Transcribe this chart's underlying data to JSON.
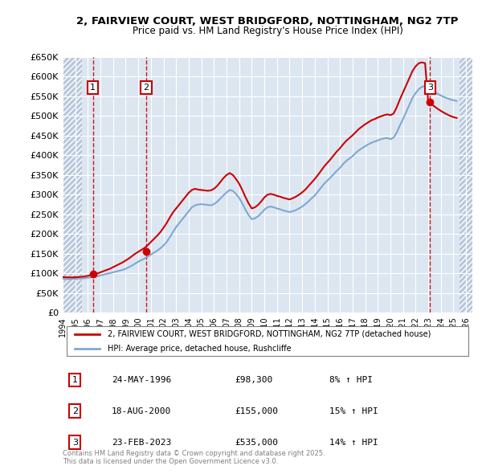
{
  "title": "2, FAIRVIEW COURT, WEST BRIDGFORD, NOTTINGHAM, NG2 7TP",
  "subtitle": "Price paid vs. HM Land Registry's House Price Index (HPI)",
  "legend_line1": "2, FAIRVIEW COURT, WEST BRIDGFORD, NOTTINGHAM, NG2 7TP (detached house)",
  "legend_line2": "HPI: Average price, detached house, Rushcliffe",
  "footer": "Contains HM Land Registry data © Crown copyright and database right 2025.\nThis data is licensed under the Open Government Licence v3.0.",
  "ylim": [
    0,
    650000
  ],
  "yticks": [
    0,
    50000,
    100000,
    150000,
    200000,
    250000,
    300000,
    350000,
    400000,
    450000,
    500000,
    550000,
    600000,
    650000
  ],
  "xlim_start": 1994.0,
  "xlim_end": 2026.5,
  "hatch_end_year": 1995.5,
  "hatch_start_year2": 2025.5,
  "background_color": "#ffffff",
  "plot_bg_color": "#dce6f1",
  "hatch_color": "#b8c8dc",
  "grid_color": "#ffffff",
  "red_line_color": "#cc0000",
  "blue_line_color": "#7fa8d0",
  "sale_marker_color": "#cc0000",
  "sale_vline_color": "#cc0000",
  "sales": [
    {
      "num": 1,
      "year": 1996.39,
      "price": 98300,
      "label": "24-MAY-1996",
      "amount": "£98,300",
      "pct": "8% ↑ HPI"
    },
    {
      "num": 2,
      "year": 2000.63,
      "price": 155000,
      "label": "18-AUG-2000",
      "amount": "£155,000",
      "pct": "15% ↑ HPI"
    },
    {
      "num": 3,
      "year": 2023.15,
      "price": 535000,
      "label": "23-FEB-2023",
      "amount": "£535,000",
      "pct": "14% ↑ HPI"
    }
  ],
  "hpi_data": {
    "years": [
      1994.0,
      1994.25,
      1994.5,
      1994.75,
      1995.0,
      1995.25,
      1995.5,
      1995.75,
      1996.0,
      1996.25,
      1996.5,
      1996.75,
      1997.0,
      1997.25,
      1997.5,
      1997.75,
      1998.0,
      1998.25,
      1998.5,
      1998.75,
      1999.0,
      1999.25,
      1999.5,
      1999.75,
      2000.0,
      2000.25,
      2000.5,
      2000.75,
      2001.0,
      2001.25,
      2001.5,
      2001.75,
      2002.0,
      2002.25,
      2002.5,
      2002.75,
      2003.0,
      2003.25,
      2003.5,
      2003.75,
      2004.0,
      2004.25,
      2004.5,
      2004.75,
      2005.0,
      2005.25,
      2005.5,
      2005.75,
      2006.0,
      2006.25,
      2006.5,
      2006.75,
      2007.0,
      2007.25,
      2007.5,
      2007.75,
      2008.0,
      2008.25,
      2008.5,
      2008.75,
      2009.0,
      2009.25,
      2009.5,
      2009.75,
      2010.0,
      2010.25,
      2010.5,
      2010.75,
      2011.0,
      2011.25,
      2011.5,
      2011.75,
      2012.0,
      2012.25,
      2012.5,
      2012.75,
      2013.0,
      2013.25,
      2013.5,
      2013.75,
      2014.0,
      2014.25,
      2014.5,
      2014.75,
      2015.0,
      2015.25,
      2015.5,
      2015.75,
      2016.0,
      2016.25,
      2016.5,
      2016.75,
      2017.0,
      2017.25,
      2017.5,
      2017.75,
      2018.0,
      2018.25,
      2018.5,
      2018.75,
      2019.0,
      2019.25,
      2019.5,
      2019.75,
      2020.0,
      2020.25,
      2020.5,
      2020.75,
      2021.0,
      2021.25,
      2021.5,
      2021.75,
      2022.0,
      2022.25,
      2022.5,
      2022.75,
      2023.0,
      2023.25,
      2023.5,
      2023.75,
      2024.0,
      2024.25,
      2024.5,
      2024.75,
      2025.0,
      2025.25
    ],
    "values": [
      87000,
      86000,
      85500,
      86000,
      86500,
      87000,
      87500,
      88000,
      89000,
      90000,
      91500,
      93000,
      95000,
      97000,
      99000,
      101000,
      103000,
      105000,
      107000,
      109000,
      112000,
      116000,
      120000,
      125000,
      130000,
      134000,
      138000,
      143000,
      148000,
      153000,
      158000,
      164000,
      171000,
      180000,
      192000,
      205000,
      218000,
      228000,
      238000,
      248000,
      258000,
      268000,
      273000,
      275000,
      276000,
      275000,
      274000,
      273000,
      276000,
      282000,
      290000,
      298000,
      306000,
      312000,
      310000,
      302000,
      292000,
      278000,
      262000,
      248000,
      238000,
      240000,
      245000,
      253000,
      262000,
      268000,
      270000,
      268000,
      265000,
      263000,
      260000,
      258000,
      256000,
      258000,
      261000,
      265000,
      270000,
      276000,
      283000,
      291000,
      298000,
      308000,
      318000,
      328000,
      336000,
      344000,
      352000,
      361000,
      368000,
      378000,
      386000,
      392000,
      398000,
      406000,
      413000,
      418000,
      423000,
      428000,
      432000,
      435000,
      438000,
      441000,
      443000,
      444000,
      441000,
      445000,
      458000,
      476000,
      492000,
      510000,
      528000,
      546000,
      558000,
      568000,
      574000,
      576000,
      572000,
      568000,
      562000,
      556000,
      552000,
      548000,
      545000,
      542000,
      540000,
      538000
    ]
  },
  "price_data": {
    "years": [
      1994.0,
      1994.25,
      1994.5,
      1994.75,
      1995.0,
      1995.25,
      1995.5,
      1995.75,
      1996.0,
      1996.25,
      1996.5,
      1996.75,
      1997.0,
      1997.25,
      1997.5,
      1997.75,
      1998.0,
      1998.25,
      1998.5,
      1998.75,
      1999.0,
      1999.25,
      1999.5,
      1999.75,
      2000.0,
      2000.25,
      2000.5,
      2000.75,
      2001.0,
      2001.25,
      2001.5,
      2001.75,
      2002.0,
      2002.25,
      2002.5,
      2002.75,
      2003.0,
      2003.25,
      2003.5,
      2003.75,
      2004.0,
      2004.25,
      2004.5,
      2004.75,
      2005.0,
      2005.25,
      2005.5,
      2005.75,
      2006.0,
      2006.25,
      2006.5,
      2006.75,
      2007.0,
      2007.25,
      2007.5,
      2007.75,
      2008.0,
      2008.25,
      2008.5,
      2008.75,
      2009.0,
      2009.25,
      2009.5,
      2009.75,
      2010.0,
      2010.25,
      2010.5,
      2010.75,
      2011.0,
      2011.25,
      2011.5,
      2011.75,
      2012.0,
      2012.25,
      2012.5,
      2012.75,
      2013.0,
      2013.25,
      2013.5,
      2013.75,
      2014.0,
      2014.25,
      2014.5,
      2014.75,
      2015.0,
      2015.25,
      2015.5,
      2015.75,
      2016.0,
      2016.25,
      2016.5,
      2016.75,
      2017.0,
      2017.25,
      2017.5,
      2017.75,
      2018.0,
      2018.25,
      2018.5,
      2018.75,
      2019.0,
      2019.25,
      2019.5,
      2019.75,
      2020.0,
      2020.25,
      2020.5,
      2020.75,
      2021.0,
      2021.25,
      2021.5,
      2021.75,
      2022.0,
      2022.25,
      2022.5,
      2022.75,
      2023.0,
      2023.25,
      2023.5,
      2023.75,
      2024.0,
      2024.25,
      2024.5,
      2024.75,
      2025.0,
      2025.25
    ],
    "values": [
      91000,
      90500,
      90000,
      90000,
      90500,
      91000,
      91500,
      92500,
      94000,
      96000,
      98300,
      100000,
      103000,
      106000,
      109000,
      112000,
      116000,
      120000,
      124000,
      128000,
      133000,
      138000,
      144000,
      150000,
      155000,
      160000,
      165000,
      172000,
      180000,
      188000,
      196000,
      205000,
      216000,
      228000,
      242000,
      255000,
      265000,
      275000,
      285000,
      295000,
      305000,
      312000,
      315000,
      313000,
      312000,
      311000,
      310000,
      311000,
      315000,
      322000,
      332000,
      342000,
      350000,
      355000,
      350000,
      340000,
      328000,
      312000,
      294000,
      278000,
      265000,
      268000,
      274000,
      283000,
      293000,
      300000,
      302000,
      300000,
      297000,
      295000,
      292000,
      290000,
      288000,
      291000,
      295000,
      300000,
      306000,
      313000,
      322000,
      331000,
      340000,
      350000,
      361000,
      372000,
      381000,
      390000,
      400000,
      410000,
      418000,
      428000,
      437000,
      444000,
      451000,
      459000,
      467000,
      473000,
      479000,
      484000,
      489000,
      492000,
      496000,
      499000,
      502000,
      504000,
      502000,
      506000,
      522000,
      542000,
      560000,
      578000,
      596000,
      614000,
      626000,
      634000,
      636000,
      634000,
      535000,
      530000,
      524000,
      518000,
      513000,
      508000,
      504000,
      500000,
      497000,
      495000
    ]
  }
}
